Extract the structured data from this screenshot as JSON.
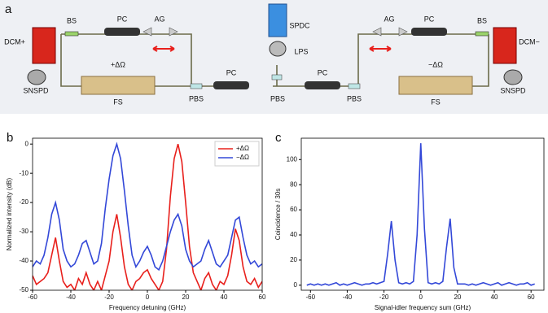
{
  "diagram": {
    "panel_label": "a",
    "labels": [
      "BS",
      "PC",
      "AG",
      "DCM+",
      "SNSPD",
      "+ΔΩ",
      "FS",
      "PBS",
      "PC",
      "SPDC",
      "LPS",
      "PBS",
      "PC",
      "PBS",
      "AG",
      "PC",
      "BS",
      "DCM−",
      "−ΔΩ",
      "FS",
      "SNSPD"
    ]
  },
  "chart_data": [
    {
      "type": "line",
      "panel_label": "b",
      "xlabel": "Frequency detuning (GHz)",
      "ylabel": "Normalized intensity (dB)",
      "xlim": [
        -60,
        60
      ],
      "ylim": [
        -50,
        2
      ],
      "xticks": [
        -60,
        -40,
        -20,
        0,
        20,
        40,
        60
      ],
      "yticks": [
        0,
        -10,
        -20,
        -30,
        -40,
        -50
      ],
      "legend": "upper right",
      "x": [
        -60,
        -58,
        -56,
        -54,
        -52,
        -50,
        -48,
        -46,
        -44,
        -42,
        -40,
        -38,
        -36,
        -34,
        -32,
        -30,
        -28,
        -26,
        -24,
        -22,
        -20,
        -18,
        -16,
        -14,
        -12,
        -10,
        -8,
        -6,
        -4,
        -2,
        0,
        2,
        4,
        6,
        8,
        10,
        12,
        14,
        16,
        18,
        20,
        22,
        24,
        26,
        28,
        30,
        32,
        34,
        36,
        38,
        40,
        42,
        44,
        46,
        48,
        50,
        52,
        54,
        56,
        58,
        60
      ],
      "series": [
        {
          "name": "+ΔΩ",
          "color": "#e8201c",
          "values": [
            -45,
            -48,
            -47,
            -46,
            -44,
            -38,
            -32,
            -40,
            -47,
            -49,
            -48,
            -50,
            -46,
            -48,
            -44,
            -48,
            -50,
            -47,
            -50,
            -45,
            -40,
            -30,
            -24,
            -32,
            -42,
            -48,
            -50,
            -47,
            -46,
            -44,
            -43,
            -46,
            -48,
            -50,
            -47,
            -36,
            -18,
            -5,
            0,
            -6,
            -20,
            -35,
            -44,
            -47,
            -50,
            -46,
            -44,
            -48,
            -50,
            -47,
            -48,
            -45,
            -38,
            -29,
            -33,
            -42,
            -47,
            -48,
            -46,
            -49,
            -47
          ]
        },
        {
          "name": "−ΔΩ",
          "color": "#3348d8",
          "values": [
            -42,
            -40,
            -41,
            -38,
            -32,
            -24,
            -20,
            -26,
            -36,
            -40,
            -42,
            -41,
            -38,
            -34,
            -33,
            -37,
            -41,
            -40,
            -34,
            -22,
            -12,
            -4,
            0,
            -5,
            -16,
            -28,
            -38,
            -42,
            -40,
            -37,
            -35,
            -38,
            -42,
            -43,
            -40,
            -35,
            -30,
            -26,
            -24,
            -28,
            -36,
            -40,
            -42,
            -41,
            -40,
            -36,
            -33,
            -37,
            -41,
            -42,
            -40,
            -38,
            -32,
            -26,
            -25,
            -32,
            -38,
            -41,
            -40,
            -42,
            -41
          ]
        }
      ]
    },
    {
      "type": "line",
      "panel_label": "c",
      "xlabel": "Signal-idler frequency sum (GHz)",
      "ylabel": "Coincidence / 30s",
      "xlim": [
        -65,
        67
      ],
      "ylim": [
        -4,
        117
      ],
      "xticks": [
        -60,
        -40,
        -20,
        0,
        20,
        40,
        60
      ],
      "yticks": [
        0,
        20,
        40,
        60,
        80,
        100
      ],
      "x": [
        -62,
        -60,
        -58,
        -56,
        -54,
        -52,
        -50,
        -48,
        -46,
        -44,
        -42,
        -40,
        -38,
        -36,
        -34,
        -32,
        -30,
        -28,
        -26,
        -24,
        -22,
        -20,
        -18,
        -16,
        -14,
        -12,
        -10,
        -8,
        -6,
        -4,
        -2,
        0,
        2,
        4,
        6,
        8,
        10,
        12,
        14,
        16,
        18,
        20,
        22,
        24,
        26,
        28,
        30,
        32,
        34,
        36,
        38,
        40,
        42,
        44,
        46,
        48,
        50,
        52,
        54,
        56,
        58,
        60,
        62
      ],
      "series": [
        {
          "name": null,
          "color": "#3348d8",
          "values": [
            0,
            1,
            0,
            1,
            0,
            1,
            0,
            1,
            2,
            0,
            1,
            0,
            1,
            2,
            1,
            0,
            1,
            1,
            2,
            1,
            2,
            3,
            25,
            51,
            20,
            2,
            1,
            2,
            1,
            3,
            40,
            113,
            45,
            2,
            1,
            2,
            1,
            3,
            30,
            53,
            14,
            1,
            1,
            1,
            0,
            1,
            0,
            1,
            2,
            1,
            0,
            1,
            2,
            0,
            1,
            2,
            1,
            0,
            1,
            1,
            2,
            0,
            1
          ]
        }
      ]
    }
  ]
}
